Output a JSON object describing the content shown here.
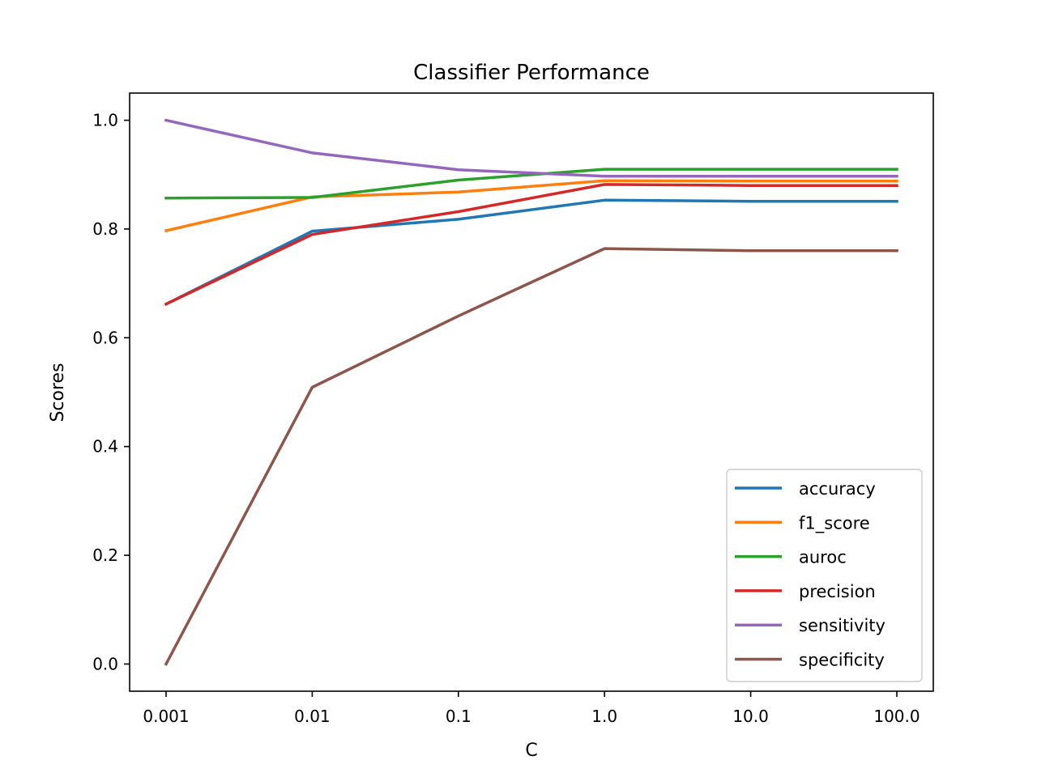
{
  "chart_data": {
    "type": "line",
    "title": "Classifier Performance",
    "xlabel": "C",
    "ylabel": "Scores",
    "categories": [
      "0.001",
      "0.01",
      "0.1",
      "1.0",
      "10.0",
      "100.0"
    ],
    "ylim": [
      -0.05,
      1.05
    ],
    "yticks": [
      "0.0",
      "0.2",
      "0.4",
      "0.6",
      "0.8",
      "1.0"
    ],
    "grid": false,
    "legend_position": "lower-right",
    "series": [
      {
        "name": "accuracy",
        "color": "#1f77b4",
        "values": [
          0.662,
          0.796,
          0.818,
          0.853,
          0.851,
          0.851
        ]
      },
      {
        "name": "f1_score",
        "color": "#ff7f0e",
        "values": [
          0.797,
          0.859,
          0.868,
          0.889,
          0.888,
          0.888
        ]
      },
      {
        "name": "auroc",
        "color": "#2ca02c",
        "values": [
          0.857,
          0.858,
          0.89,
          0.91,
          0.91,
          0.91
        ]
      },
      {
        "name": "precision",
        "color": "#d62728",
        "values": [
          0.662,
          0.79,
          0.832,
          0.882,
          0.88,
          0.88
        ]
      },
      {
        "name": "sensitivity",
        "color": "#9467bd",
        "values": [
          1.0,
          0.94,
          0.909,
          0.897,
          0.897,
          0.897
        ]
      },
      {
        "name": "specificity",
        "color": "#8c564b",
        "values": [
          0.0,
          0.509,
          0.64,
          0.764,
          0.76,
          0.76
        ]
      }
    ]
  }
}
